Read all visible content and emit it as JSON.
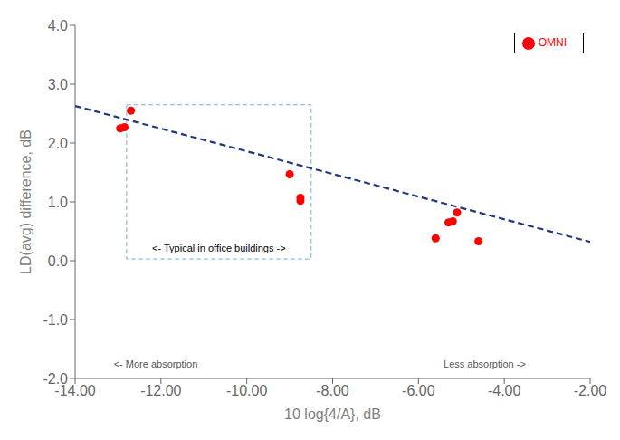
{
  "chart_data": {
    "type": "scatter",
    "xlabel": "10 log{4/A}, dB",
    "ylabel": "LD(avg) difference, dB",
    "xlim": [
      -14.0,
      -2.0
    ],
    "ylim": [
      -2.0,
      4.0
    ],
    "xticks": [
      {
        "value": -14.0,
        "label": "-14.00"
      },
      {
        "value": -12.0,
        "label": "-12.00"
      },
      {
        "value": -10.0,
        "label": "-10.00"
      },
      {
        "value": -8.0,
        "label": "-8.00"
      },
      {
        "value": -6.0,
        "label": "-6.00"
      },
      {
        "value": -4.0,
        "label": "-4.00"
      },
      {
        "value": -2.0,
        "label": "-2.00"
      }
    ],
    "yticks": [
      {
        "value": -2.0,
        "label": "-2.0"
      },
      {
        "value": -1.0,
        "label": "-1.0"
      },
      {
        "value": 0.0,
        "label": "0.0"
      },
      {
        "value": 1.0,
        "label": "1.0"
      },
      {
        "value": 2.0,
        "label": "2.0"
      },
      {
        "value": 3.0,
        "label": "3.0"
      },
      {
        "value": 4.0,
        "label": "4.0"
      }
    ],
    "grid": false,
    "legend": "upper right",
    "series": [
      {
        "type": "line",
        "line_style": "dashed",
        "color": "#1f3a7a",
        "x": [
          -14.0,
          -2.0
        ],
        "values": [
          2.63,
          0.32
        ]
      },
      {
        "name": "OMNI",
        "type": "scatter",
        "marker": "o",
        "color": "#ff0000",
        "x": [
          -12.7,
          -12.85,
          -12.95,
          -9.0,
          -8.75,
          -8.75,
          -5.6,
          -5.3,
          -5.2,
          -5.1,
          -4.6
        ],
        "values": [
          2.55,
          2.27,
          2.25,
          1.47,
          1.07,
          1.02,
          0.38,
          0.65,
          0.67,
          0.82,
          0.33
        ]
      }
    ],
    "box": {
      "x": -12.8,
      "y": 0.03,
      "width": 4.3,
      "height": 2.62,
      "color": "#7bafd4",
      "line_style": "dashed"
    },
    "annotations": [
      {
        "text": "<- Typical in office buildings ->",
        "x": -10.65,
        "y": 0.12,
        "color": "black"
      },
      {
        "text": "<- More absorption",
        "x": -13.1,
        "y": -1.75,
        "color": "#555555"
      },
      {
        "text": "Less absorption ->",
        "x": -3.5,
        "y": -1.75,
        "color": "#555555"
      }
    ]
  }
}
